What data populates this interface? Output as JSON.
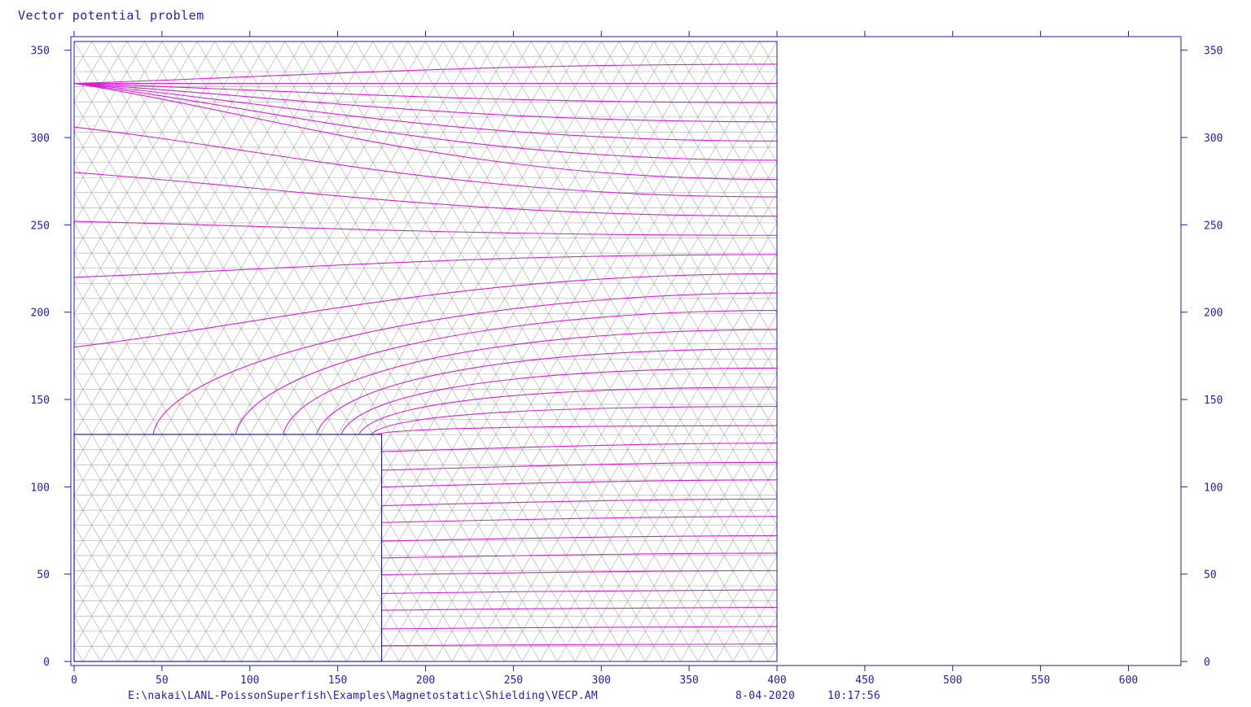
{
  "title": "Vector potential problem",
  "footer": {
    "path": "E:\\nakai\\LANL-PoissonSuperfish\\Examples\\Magnetostatic\\Shielding\\VECP.AM",
    "date": "8-04-2020",
    "time": "10:17:56"
  },
  "colors": {
    "frame": "#1f1fb0",
    "mesh": "#b4b4b4",
    "field_lines": "#d81ed8",
    "background": "#ffffff"
  },
  "chart_data": {
    "type": "line",
    "title": "Vector potential problem",
    "xlim": [
      0,
      630
    ],
    "ylim": [
      0,
      355
    ],
    "x_ticks": [
      0,
      50,
      100,
      150,
      200,
      250,
      300,
      350,
      400,
      450,
      500,
      550,
      600
    ],
    "y_ticks": [
      0,
      50,
      100,
      150,
      200,
      250,
      300,
      350
    ],
    "tick_labels_x": [
      "0",
      "50",
      "100",
      "150",
      "200",
      "250",
      "300",
      "350",
      "400",
      "450",
      "500",
      "550",
      "600"
    ],
    "tick_labels_y": [
      "0",
      "50",
      "100",
      "150",
      "200",
      "250",
      "300",
      "350"
    ],
    "problem_region": {
      "x": [
        0,
        400
      ],
      "y": [
        0,
        355
      ]
    },
    "shield_region": {
      "x": [
        0,
        175
      ],
      "y": [
        0,
        130
      ]
    },
    "mesh_spacing": 10,
    "grid": false,
    "field_lines": {
      "count": 34,
      "right_edge_levels": [
        10,
        20,
        31,
        41,
        52,
        62,
        72,
        83,
        93,
        104,
        114,
        125,
        135,
        146,
        157,
        168,
        179,
        190,
        201,
        211,
        222,
        233,
        244,
        255,
        266,
        276,
        287,
        298,
        309,
        320,
        331,
        342
      ],
      "top_side_crossings_x": [
        45,
        92,
        119,
        138,
        152,
        162,
        169,
        172
      ],
      "left_edge_levels": [
        180,
        220,
        252,
        280,
        306,
        331
      ]
    }
  }
}
